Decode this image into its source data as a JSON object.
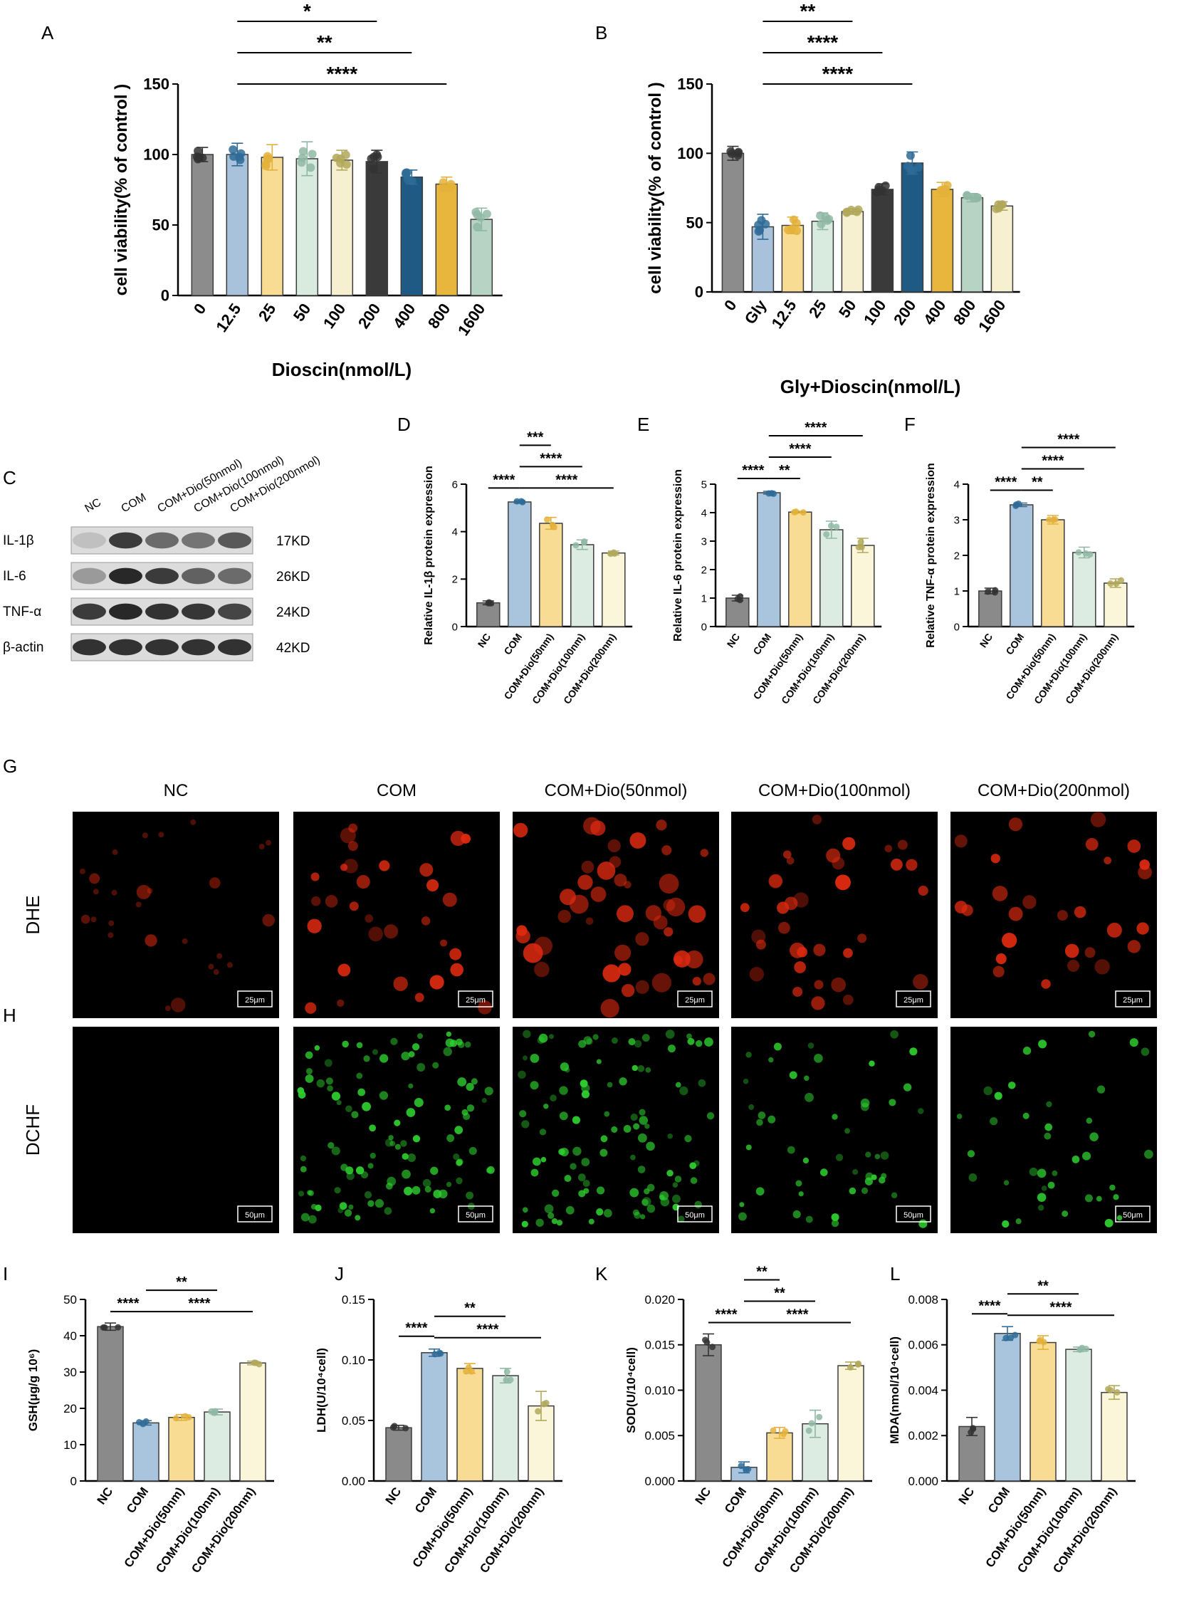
{
  "colors": {
    "NC": "#8a8a8a",
    "COM": "#a9c4dd",
    "D50": "#f9dc94",
    "D100": "#dcece3",
    "D200": "#fbf6da",
    "v0": "#8c8c8c",
    "v12": "#a8c2db",
    "v25": "#f9dc94",
    "v50": "#d9eadf",
    "v100": "#f6efd0",
    "v200": "#3a3a3a",
    "v400": "#1e5a84",
    "v800": "#e8b63c",
    "v1600": "#b6d3c4",
    "pt_dark": "#333333",
    "pt_blue": "#2f6b96",
    "pt_gold": "#e3b13a",
    "pt_green": "#8fb8a4",
    "pt_olive": "#b2a85a",
    "dhe": "#e02a10",
    "dchf": "#2fd030"
  },
  "panels": {
    "A": {
      "letter": "A"
    },
    "B": {
      "letter": "B"
    },
    "C": {
      "letter": "C"
    },
    "D": {
      "letter": "D"
    },
    "E": {
      "letter": "E"
    },
    "F": {
      "letter": "F"
    },
    "G": {
      "letter": "G"
    },
    "H": {
      "letter": "H"
    },
    "I": {
      "letter": "I"
    },
    "J": {
      "letter": "J"
    },
    "K": {
      "letter": "K"
    },
    "L": {
      "letter": "L"
    }
  },
  "chart_data": [
    {
      "id": "A",
      "type": "bar",
      "ylabel": "cell viability(% of control )",
      "xlabel": "Dioscin(nmol/L)",
      "ylim": [
        0,
        150
      ],
      "yticks": [
        "0",
        "50",
        "100",
        "150"
      ],
      "categories": [
        "0",
        "12.5",
        "25",
        "50",
        "100",
        "200",
        "400",
        "800",
        "1600"
      ],
      "values": [
        100,
        100,
        98,
        97,
        96,
        95,
        84,
        79,
        54
      ],
      "errors": [
        5,
        8,
        9,
        12,
        7,
        8,
        5,
        5,
        8
      ],
      "colors": [
        "v0",
        "v12",
        "v25",
        "v50",
        "v100",
        "v200",
        "v400",
        "v800",
        "v1600"
      ],
      "brackets": [
        {
          "from": 1,
          "to": 5,
          "label": "*"
        },
        {
          "from": 1,
          "to": 6,
          "label": "**"
        },
        {
          "from": 1,
          "to": 7,
          "label": "****"
        }
      ]
    },
    {
      "id": "B",
      "type": "bar",
      "ylabel": "cell viability(% of control )",
      "xlabel": "Gly+Dioscin(nmol/L)",
      "ylim": [
        0,
        150
      ],
      "yticks": [
        "0",
        "50",
        "100",
        "150"
      ],
      "categories": [
        "0",
        "Gly",
        "12.5",
        "25",
        "50",
        "100",
        "200",
        "400",
        "800",
        "1600"
      ],
      "values": [
        100,
        47,
        48,
        51,
        58,
        74,
        93,
        74,
        68,
        62
      ],
      "errors": [
        5,
        9,
        6,
        6,
        2,
        4,
        8,
        5,
        3,
        3
      ],
      "colors": [
        "v0",
        "v12",
        "v25",
        "v50",
        "v100",
        "v200",
        "v400",
        "v800",
        "v1600",
        "v100"
      ],
      "brackets": [
        {
          "from": 1,
          "to": 4,
          "label": "**"
        },
        {
          "from": 1,
          "to": 5,
          "label": "****"
        },
        {
          "from": 1,
          "to": 6,
          "label": "****"
        }
      ]
    },
    {
      "id": "D",
      "type": "bar",
      "ylabel": "Relative IL-1β protein expression",
      "ylim": [
        0,
        6
      ],
      "yticks": [
        "0",
        "2",
        "4",
        "6"
      ],
      "categories": [
        "NC",
        "COM",
        "COM+Dio(50nm)",
        "COM+Dio(100nm)",
        "COM+Dio(200nm)"
      ],
      "values": [
        1.0,
        5.25,
        4.35,
        3.45,
        3.1
      ],
      "errors": [
        0.08,
        0.05,
        0.25,
        0.2,
        0.08
      ],
      "colors": [
        "NC",
        "COM",
        "D50",
        "D100",
        "D200"
      ],
      "brackets": [
        {
          "from": 0,
          "to": 1,
          "label": "****"
        },
        {
          "from": 1,
          "to": 2,
          "label": "***"
        },
        {
          "from": 1,
          "to": 3,
          "label": "****"
        },
        {
          "from": 1,
          "to": 4,
          "label": "****"
        }
      ]
    },
    {
      "id": "E",
      "type": "bar",
      "ylabel": "Relative IL-6 protein expression",
      "ylim": [
        0,
        5
      ],
      "yticks": [
        "0",
        "1",
        "2",
        "3",
        "4",
        "5"
      ],
      "categories": [
        "NC",
        "COM",
        "COM+Dio(50nm)",
        "COM+Dio(100nm)",
        "COM+Dio(200nm)"
      ],
      "values": [
        1.0,
        4.7,
        4.02,
        3.4,
        2.85
      ],
      "errors": [
        0.1,
        0.05,
        0.03,
        0.3,
        0.25
      ],
      "colors": [
        "NC",
        "COM",
        "D50",
        "D100",
        "D200"
      ],
      "brackets": [
        {
          "from": 0,
          "to": 1,
          "label": "****"
        },
        {
          "from": 1,
          "to": 2,
          "label": "**"
        },
        {
          "from": 1,
          "to": 3,
          "label": "****"
        },
        {
          "from": 1,
          "to": 4,
          "label": "****"
        }
      ]
    },
    {
      "id": "F",
      "type": "bar",
      "ylabel": "Relative TNF-α protein expression",
      "ylim": [
        0,
        4
      ],
      "yticks": [
        "0",
        "1",
        "2",
        "3",
        "4"
      ],
      "categories": [
        "NC",
        "COM",
        "COM+Dio(50nm)",
        "COM+Dio(100nm)",
        "COM+Dio(200nm)"
      ],
      "values": [
        1.0,
        3.42,
        3.0,
        2.08,
        1.22
      ],
      "errors": [
        0.08,
        0.05,
        0.12,
        0.15,
        0.12
      ],
      "colors": [
        "NC",
        "COM",
        "D50",
        "D100",
        "D200"
      ],
      "brackets": [
        {
          "from": 0,
          "to": 1,
          "label": "****"
        },
        {
          "from": 1,
          "to": 2,
          "label": "**"
        },
        {
          "from": 1,
          "to": 3,
          "label": "****"
        },
        {
          "from": 1,
          "to": 4,
          "label": "****"
        }
      ]
    },
    {
      "id": "I",
      "type": "bar",
      "ylabel": "GSH(μg/g 10⁶)",
      "ylim": [
        0,
        50
      ],
      "yticks": [
        "0",
        "10",
        "20",
        "30",
        "40",
        "50"
      ],
      "categories": [
        "NC",
        "COM",
        "COM+Dio(50nm)",
        "COM+Dio(100nm)",
        "COM+Dio(200nm)"
      ],
      "values": [
        42.5,
        16,
        17.5,
        19,
        32.5
      ],
      "errors": [
        1.0,
        0.6,
        0.8,
        0.8,
        0.5
      ],
      "colors": [
        "NC",
        "COM",
        "D50",
        "D100",
        "D200"
      ],
      "brackets": [
        {
          "from": 0,
          "to": 1,
          "label": "****"
        },
        {
          "from": 1,
          "to": 3,
          "label": "**"
        },
        {
          "from": 1,
          "to": 4,
          "label": "****"
        }
      ]
    },
    {
      "id": "J",
      "type": "bar",
      "ylabel": "LDH(U/10⁴cell)",
      "ylim": [
        0,
        0.15
      ],
      "yticks": [
        "0.00",
        "0.05",
        "0.10",
        "0.15"
      ],
      "categories": [
        "NC",
        "COM",
        "COM+Dio(50nm)",
        "COM+Dio(100nm)",
        "COM+Dio(200nm)"
      ],
      "values": [
        0.044,
        0.106,
        0.093,
        0.087,
        0.062
      ],
      "errors": [
        0.002,
        0.003,
        0.004,
        0.006,
        0.012
      ],
      "colors": [
        "NC",
        "COM",
        "D50",
        "D100",
        "D200"
      ],
      "brackets": [
        {
          "from": 0,
          "to": 1,
          "label": "****"
        },
        {
          "from": 1,
          "to": 3,
          "label": "**"
        },
        {
          "from": 1,
          "to": 4,
          "label": "****"
        }
      ]
    },
    {
      "id": "K",
      "type": "bar",
      "ylabel": "SOD(U/10⁴cell)",
      "ylim": [
        0,
        0.02
      ],
      "yticks": [
        "0.000",
        "0.005",
        "0.010",
        "0.015",
        "0.020"
      ],
      "categories": [
        "NC",
        "COM",
        "COM+Dio(50nm)",
        "COM+Dio(100nm)",
        "COM+Dio(200nm)"
      ],
      "values": [
        0.015,
        0.0015,
        0.0053,
        0.0063,
        0.0127
      ],
      "errors": [
        0.0012,
        0.0006,
        0.0006,
        0.0015,
        0.0004
      ],
      "colors": [
        "NC",
        "COM",
        "D50",
        "D100",
        "D200"
      ],
      "brackets": [
        {
          "from": 0,
          "to": 1,
          "label": "****"
        },
        {
          "from": 1,
          "to": 2,
          "label": "**"
        },
        {
          "from": 1,
          "to": 3,
          "label": "**"
        },
        {
          "from": 1,
          "to": 4,
          "label": "****"
        }
      ]
    },
    {
      "id": "L",
      "type": "bar",
      "ylabel": "MDA(nmol/10⁴cell)",
      "ylim": [
        0,
        0.008
      ],
      "yticks": [
        "0.000",
        "0.002",
        "0.004",
        "0.006",
        "0.008"
      ],
      "categories": [
        "NC",
        "COM",
        "COM+Dio(50nm)",
        "COM+Dio(100nm)",
        "COM+Dio(200nm)"
      ],
      "values": [
        0.0024,
        0.0065,
        0.0061,
        0.0058,
        0.0039
      ],
      "errors": [
        0.0004,
        0.0003,
        0.0003,
        0.0001,
        0.0003
      ],
      "colors": [
        "NC",
        "COM",
        "D50",
        "D100",
        "D200"
      ],
      "brackets": [
        {
          "from": 0,
          "to": 1,
          "label": "****"
        },
        {
          "from": 1,
          "to": 3,
          "label": "**"
        },
        {
          "from": 1,
          "to": 4,
          "label": "****"
        }
      ]
    }
  ],
  "western": {
    "lanes": [
      "NC",
      "COM",
      "COM+Dio(50nmol)",
      "COM+Dio(100nmol)",
      "COM+Dio(200nmol)"
    ],
    "rows": [
      {
        "protein": "IL-1β",
        "size": "17KD",
        "intensity": [
          0.15,
          0.85,
          0.6,
          0.55,
          0.7
        ]
      },
      {
        "protein": "IL-6",
        "size": "26KD",
        "intensity": [
          0.35,
          0.95,
          0.85,
          0.65,
          0.6
        ]
      },
      {
        "protein": "TNF-α",
        "size": "24KD",
        "intensity": [
          0.85,
          0.95,
          0.9,
          0.88,
          0.8
        ]
      },
      {
        "protein": "β-actin",
        "size": "42KD",
        "intensity": [
          0.9,
          0.9,
          0.9,
          0.9,
          0.9
        ]
      }
    ]
  },
  "micro": {
    "columns": [
      "NC",
      "COM",
      "COM+Dio(50nmol)",
      "COM+Dio(100nmol)",
      "COM+Dio(200nmol)"
    ],
    "rows": [
      {
        "label": "DHE",
        "scale": "25μm",
        "density": [
          0.15,
          0.7,
          1.0,
          0.75,
          0.6
        ]
      },
      {
        "label": "DCHF",
        "scale": "50μm",
        "density": [
          0.0,
          1.0,
          1.0,
          0.45,
          0.35
        ]
      }
    ]
  }
}
